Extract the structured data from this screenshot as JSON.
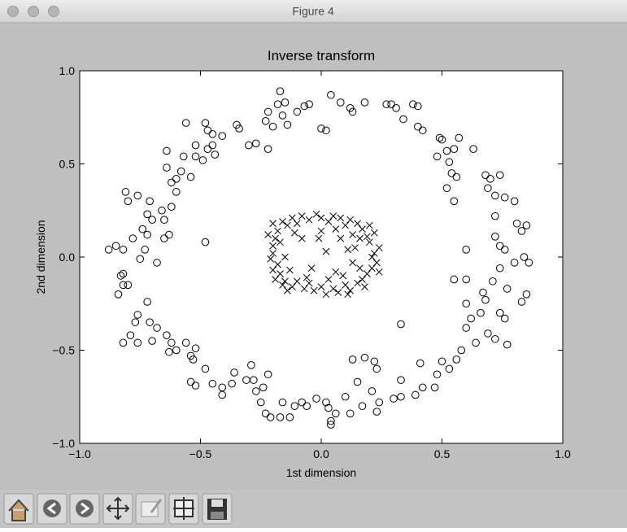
{
  "window": {
    "title": "Figure 4"
  },
  "chart_data": {
    "type": "scatter",
    "title": "Inverse transform",
    "x_label": "1st dimension",
    "y_label": "2nd dimension",
    "xlim": [
      -1,
      1
    ],
    "ylim": [
      -1,
      1
    ],
    "xticks": [
      {
        "value": -1,
        "label": "−1.0"
      },
      {
        "value": -0.5,
        "label": "−0.5"
      },
      {
        "value": 0,
        "label": "0.0"
      },
      0.5,
      {
        "value": 1,
        "label": "1.0"
      }
    ],
    "yticks": [
      {
        "value": -1,
        "label": "−1.0"
      },
      {
        "value": -0.5,
        "label": "−0.5"
      },
      {
        "value": 0,
        "label": "0.0"
      },
      0.5,
      {
        "value": 1,
        "label": "1.0"
      }
    ],
    "grid": false,
    "series": [
      {
        "marker": "o",
        "color": "#000000",
        "x": [
          -0.17,
          -0.15,
          -0.18,
          -0.1,
          -0.07,
          -0.05,
          0.04,
          0.08,
          0.12,
          0.18,
          0.27,
          0.29,
          0.31,
          0.38,
          0.4,
          -0.22,
          -0.23,
          -0.16,
          -0.14,
          -0.2,
          0.0,
          0.02,
          0.13,
          0.34,
          0.4,
          0.42,
          0.49,
          0.5,
          0.57,
          0.52,
          0.55,
          0.63,
          0.53,
          0.48,
          0.54,
          0.56,
          0.55,
          0.68,
          0.7,
          0.74,
          0.69,
          0.72,
          0.76,
          0.8,
          0.72,
          0.81,
          0.85,
          0.83,
          0.72,
          0.74,
          0.76,
          0.6,
          0.84,
          0.86,
          0.74,
          0.8,
          0.71,
          0.77,
          0.85,
          0.83,
          0.67,
          0.68,
          0.74,
          0.76,
          0.66,
          0.77,
          0.72,
          0.69,
          0.62,
          0.6,
          0.64,
          0.58,
          0.56,
          0.5,
          0.53,
          0.48,
          0.47,
          0.42,
          0.39,
          0.33,
          0.3,
          0.24,
          0.23,
          0.12,
          0.17,
          0.1,
          0.03,
          0.04,
          0.04,
          0.06,
          -0.02,
          -0.06,
          -0.08,
          -0.11,
          -0.13,
          -0.17,
          -0.21,
          -0.23,
          -0.25,
          -0.27,
          -0.31,
          -0.28,
          -0.37,
          -0.41,
          -0.45,
          -0.41,
          -0.54,
          -0.52,
          -0.48,
          -0.53,
          -0.52,
          -0.56,
          -0.62,
          -0.63,
          -0.64,
          -0.68,
          -0.71,
          -0.76,
          -0.77,
          -0.76,
          -0.82,
          -0.79,
          -0.7,
          -0.72,
          -0.8,
          -0.82,
          -0.83,
          -0.82,
          -0.84,
          -0.85,
          -0.82,
          -0.78,
          -0.88,
          -0.75,
          -0.73,
          -0.72,
          -0.68,
          -0.72,
          -0.7,
          -0.74,
          -0.81,
          -0.8,
          -0.76,
          -0.71,
          -0.66,
          -0.65,
          -0.63,
          -0.62,
          -0.6,
          -0.6,
          -0.58,
          -0.54,
          -0.52,
          -0.49,
          -0.45,
          -0.47,
          -0.44,
          -0.52,
          -0.56,
          -0.48,
          -0.47,
          -0.45,
          -0.41,
          -0.34,
          -0.35,
          -0.3,
          -0.27,
          -0.22,
          -0.64,
          -0.57,
          -0.62,
          -0.64,
          -0.48,
          -0.65,
          0.52,
          0.33,
          0.22,
          0.18,
          0.23,
          0.13,
          -0.6,
          -0.54,
          -0.36,
          -0.29,
          -0.22,
          -0.24,
          -0.16,
          0.02,
          0.15,
          0.21,
          0.33,
          0.41,
          0.6,
          0.6,
          0.55
        ],
        "y": [
          0.89,
          0.83,
          0.82,
          0.78,
          0.81,
          0.82,
          0.87,
          0.83,
          0.8,
          0.83,
          0.82,
          0.82,
          0.8,
          0.82,
          0.81,
          0.78,
          0.73,
          0.76,
          0.71,
          0.7,
          0.69,
          0.68,
          0.78,
          0.74,
          0.7,
          0.68,
          0.64,
          0.63,
          0.64,
          0.57,
          0.58,
          0.58,
          0.51,
          0.54,
          0.45,
          0.43,
          0.3,
          0.44,
          0.42,
          0.44,
          0.37,
          0.33,
          0.32,
          0.3,
          0.22,
          0.18,
          0.17,
          0.14,
          0.11,
          0.06,
          0.04,
          0.04,
          0.0,
          -0.03,
          -0.06,
          -0.03,
          -0.13,
          -0.17,
          -0.2,
          -0.24,
          -0.19,
          -0.23,
          -0.3,
          -0.33,
          -0.3,
          -0.47,
          -0.44,
          -0.41,
          -0.33,
          -0.38,
          -0.46,
          -0.5,
          -0.55,
          -0.56,
          -0.6,
          -0.63,
          -0.7,
          -0.7,
          -0.74,
          -0.75,
          -0.76,
          -0.78,
          -0.83,
          -0.84,
          -0.8,
          -0.75,
          -0.81,
          -0.88,
          -0.9,
          -0.84,
          -0.76,
          -0.8,
          -0.78,
          -0.8,
          -0.86,
          -0.86,
          -0.86,
          -0.84,
          -0.78,
          -0.72,
          -0.66,
          -0.66,
          -0.68,
          -0.7,
          -0.68,
          -0.74,
          -0.67,
          -0.69,
          -0.6,
          -0.55,
          -0.49,
          -0.46,
          -0.46,
          -0.51,
          -0.42,
          -0.38,
          -0.35,
          -0.31,
          -0.35,
          -0.46,
          -0.46,
          -0.42,
          -0.45,
          -0.24,
          -0.15,
          -0.09,
          -0.1,
          -0.15,
          -0.2,
          0.06,
          0.04,
          0.1,
          0.04,
          -0.01,
          0.04,
          0.12,
          -0.03,
          0.23,
          0.2,
          0.15,
          0.35,
          0.3,
          0.33,
          0.3,
          0.25,
          0.2,
          0.12,
          0.27,
          0.35,
          0.42,
          0.46,
          0.43,
          0.54,
          0.52,
          0.6,
          0.58,
          0.55,
          0.6,
          0.72,
          0.72,
          0.68,
          0.66,
          0.65,
          0.69,
          0.71,
          0.6,
          0.61,
          0.58,
          0.57,
          0.54,
          0.4,
          0.48,
          0.08,
          0.1,
          0.37,
          -0.36,
          -0.56,
          -0.54,
          -0.6,
          -0.55,
          -0.5,
          -0.53,
          -0.62,
          -0.58,
          -0.63,
          -0.7,
          -0.78,
          -0.78,
          -0.67,
          -0.72,
          -0.66,
          -0.57,
          -0.25,
          -0.12,
          -0.12
        ]
      },
      {
        "marker": "x",
        "color": "#000000",
        "x": [
          0.22,
          0.24,
          0.2,
          0.23,
          0.21,
          0.19,
          0.22,
          0.17,
          0.15,
          0.12,
          0.1,
          0.08,
          0.05,
          0.03,
          0.0,
          -0.02,
          -0.05,
          -0.08,
          -0.1,
          -0.12,
          -0.14,
          -0.16,
          -0.18,
          -0.19,
          -0.2,
          -0.17,
          -0.2,
          -0.21,
          -0.18,
          -0.2,
          -0.17,
          -0.19,
          -0.15,
          -0.12,
          -0.1,
          -0.07,
          -0.05,
          -0.03,
          0.0,
          0.02,
          0.05,
          0.07,
          0.1,
          0.12,
          0.15,
          0.17,
          0.19,
          0.16,
          0.21,
          0.13,
          0.06,
          -0.11,
          -0.15,
          -0.13,
          -0.06,
          0.09,
          0.14,
          0.0,
          0.03,
          0.13,
          0.11,
          0.02,
          -0.04,
          0.2,
          -0.22,
          -0.14,
          0.24,
          -0.08,
          0.08,
          0.18,
          -0.01,
          0.16,
          -0.16,
          0.06,
          -0.2,
          0.11
        ],
        "y": [
          0.02,
          0.05,
          0.08,
          -0.03,
          -0.06,
          0.11,
          0.13,
          0.15,
          0.18,
          0.2,
          0.17,
          0.21,
          0.22,
          0.19,
          0.21,
          0.23,
          0.2,
          0.22,
          0.18,
          0.21,
          0.17,
          0.19,
          0.14,
          0.1,
          0.06,
          0.08,
          0.02,
          -0.01,
          -0.04,
          -0.07,
          -0.09,
          -0.12,
          -0.13,
          -0.16,
          -0.13,
          -0.17,
          -0.14,
          -0.18,
          -0.16,
          -0.2,
          -0.17,
          -0.19,
          -0.15,
          -0.18,
          -0.14,
          -0.12,
          -0.09,
          -0.06,
          0.0,
          0.12,
          0.15,
          0.13,
          0.0,
          -0.07,
          -0.11,
          -0.1,
          0.05,
          0.14,
          -0.12,
          -0.03,
          0.04,
          0.03,
          -0.06,
          0.17,
          0.12,
          -0.18,
          -0.08,
          0.1,
          0.1,
          -0.16,
          0.1,
          0.1,
          -0.15,
          -0.08,
          0.18,
          -0.2
        ]
      }
    ]
  }
}
